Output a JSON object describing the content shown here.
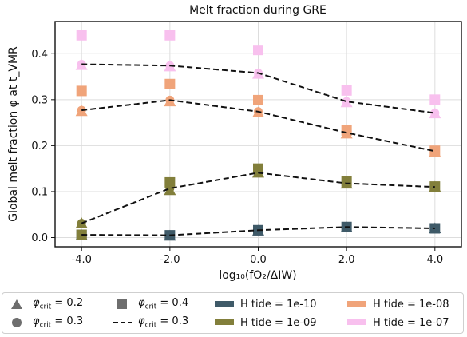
{
  "chart_data": {
    "type": "scatter",
    "title": "Melt fraction during GRE",
    "xlabel": "log₁₀(fO₂/ΔIW)",
    "ylabel": "Global melt fraction φ at t_VMR",
    "xlim": [
      -4.6,
      4.6
    ],
    "ylim": [
      -0.02,
      0.47
    ],
    "xticks": [
      -4,
      -2,
      0,
      2,
      4
    ],
    "xtick_labels": [
      "-4.0",
      "-2.0",
      "0.0",
      "2.0",
      "4.0"
    ],
    "yticks": [
      0.0,
      0.1,
      0.2,
      0.3,
      0.4
    ],
    "ytick_labels": [
      "0.0",
      "0.1",
      "0.2",
      "0.3",
      "0.4"
    ],
    "grid": true,
    "x": [
      -4,
      -2,
      0,
      2,
      4
    ],
    "series": [
      {
        "name": "H tide = 1e-10",
        "color": "#3f5a68",
        "phi_0.2": [
          0.005,
          0.004,
          0.015,
          0.022,
          0.02
        ],
        "phi_0.3": [
          0.006,
          0.005,
          0.016,
          0.023,
          0.02
        ],
        "phi_0.4": [
          0.006,
          0.005,
          0.016,
          0.023,
          0.02
        ]
      },
      {
        "name": "H tide = 1e-09",
        "color": "#827f3b",
        "phi_0.2": [
          0.031,
          0.103,
          0.141,
          0.117,
          0.11
        ],
        "phi_0.3": [
          0.031,
          0.107,
          0.141,
          0.118,
          0.11
        ],
        "phi_0.4": [
          0.006,
          0.12,
          0.15,
          0.122,
          0.111
        ]
      },
      {
        "name": "H tide = 1e-08",
        "color": "#f0a47a",
        "phi_0.2": [
          0.275,
          0.296,
          0.272,
          0.226,
          0.186
        ],
        "phi_0.3": [
          0.277,
          0.299,
          0.274,
          0.228,
          0.188
        ],
        "phi_0.4": [
          0.319,
          0.334,
          0.299,
          0.233,
          0.189
        ]
      },
      {
        "name": "H tide = 1e-07",
        "color": "#f8c0ee",
        "phi_0.2": [
          0.375,
          0.372,
          0.356,
          0.294,
          0.27
        ],
        "phi_0.3": [
          0.377,
          0.374,
          0.358,
          0.296,
          0.271
        ],
        "phi_0.4": [
          0.44,
          0.44,
          0.408,
          0.32,
          0.3
        ]
      }
    ],
    "legend_placement": "below"
  },
  "legend": {
    "phi_02": "= 0.2",
    "phi_03": "= 0.3",
    "phi_04": "= 0.4",
    "phi_03_line": "= 0.3",
    "phi_symbol": "φ",
    "crit_sub": "crit",
    "h1": "H tide = 1e-10",
    "h2": "H tide = 1e-09",
    "h3": "H tide = 1e-08",
    "h4": "H tide = 1e-07"
  }
}
